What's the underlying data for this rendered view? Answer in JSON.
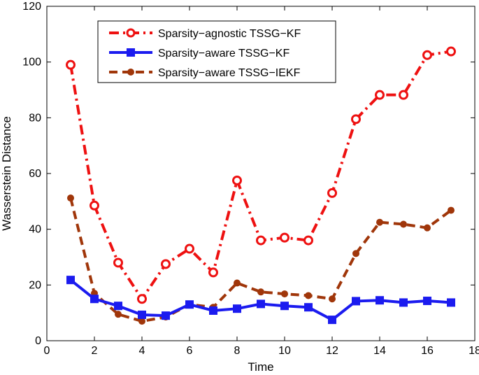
{
  "chart_data": {
    "type": "line",
    "title": "",
    "xlabel": "Time",
    "ylabel": "Wasserstein Distance",
    "xlim": [
      0,
      18
    ],
    "ylim": [
      0,
      120
    ],
    "xticks": [
      0,
      2,
      4,
      6,
      8,
      10,
      12,
      14,
      16,
      18
    ],
    "yticks": [
      0,
      20,
      40,
      60,
      80,
      100,
      120
    ],
    "grid": false,
    "legend_position": "top-left",
    "x": [
      1,
      2,
      3,
      4,
      5,
      6,
      7,
      8,
      9,
      10,
      11,
      12,
      13,
      14,
      15,
      16,
      17
    ],
    "series": [
      {
        "name": "Sparsity−agnostic TSSG−KF",
        "color": "#ee1111",
        "line_style": "dash-dot",
        "marker": "open-circle",
        "values": [
          99,
          48.5,
          28,
          15,
          27.5,
          33,
          24.5,
          57.5,
          36,
          37,
          36,
          53,
          79.5,
          88.2,
          88.2,
          102.5,
          103.8
        ]
      },
      {
        "name": "Sparsity−aware TSSG−KF",
        "color": "#1b1bef",
        "line_style": "solid",
        "marker": "filled-square",
        "values": [
          21.8,
          15,
          12.5,
          9.3,
          9,
          13,
          10.8,
          11.5,
          13.2,
          12.5,
          12,
          7.5,
          14.2,
          14.5,
          13.7,
          14.3,
          13.7
        ]
      },
      {
        "name": "Sparsity−aware TSSG−IEKF",
        "color": "#a0360a",
        "line_style": "dashed",
        "marker": "filled-circle",
        "values": [
          51.2,
          17,
          9.5,
          7,
          8.5,
          13,
          12,
          20.7,
          17.5,
          16.8,
          16.2,
          15,
          31.3,
          42.5,
          41.8,
          40.5,
          46.8
        ]
      }
    ]
  }
}
